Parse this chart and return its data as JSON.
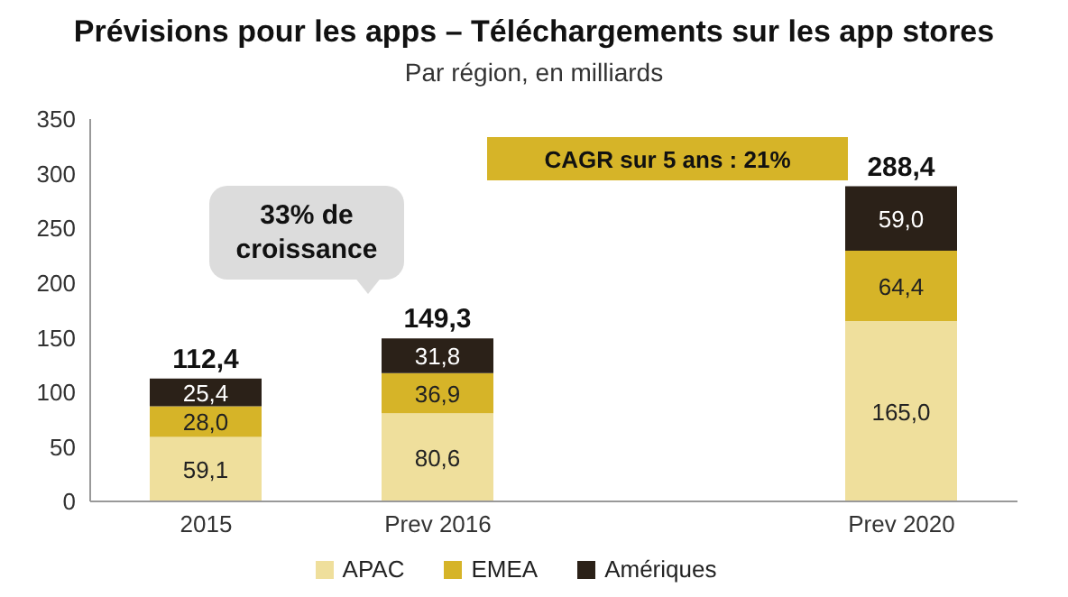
{
  "chart_data": {
    "type": "bar",
    "stacked": true,
    "title": "Prévisions pour les apps – Téléchargements sur les app stores",
    "subtitle": "Par région, en milliards",
    "categories": [
      "2015",
      "Prev 2016",
      null,
      "Prev 2020"
    ],
    "series": [
      {
        "name": "APAC",
        "color": "#efdf9c",
        "values": [
          59.1,
          80.6,
          null,
          165.0
        ],
        "value_labels": [
          "59,1",
          "80,6",
          null,
          "165,0"
        ]
      },
      {
        "name": "EMEA",
        "color": "#d6b428",
        "values": [
          28.0,
          36.9,
          null,
          64.4
        ],
        "value_labels": [
          "28,0",
          "36,9",
          null,
          "64,4"
        ]
      },
      {
        "name": "Amériques",
        "color": "#2b2118",
        "values": [
          25.4,
          31.8,
          null,
          59.0
        ],
        "value_labels": [
          "25,4",
          "31,8",
          null,
          "59,0"
        ]
      }
    ],
    "totals": [
      "112,4",
      "149,3",
      null,
      "288,4"
    ],
    "ylim": [
      0,
      350
    ],
    "yticks": [
      0,
      50,
      100,
      150,
      200,
      250,
      300,
      350
    ],
    "grid": false,
    "legend": "bottom",
    "annotations": [
      "33% de croissance",
      "CAGR sur 5 ans : 21%"
    ]
  }
}
